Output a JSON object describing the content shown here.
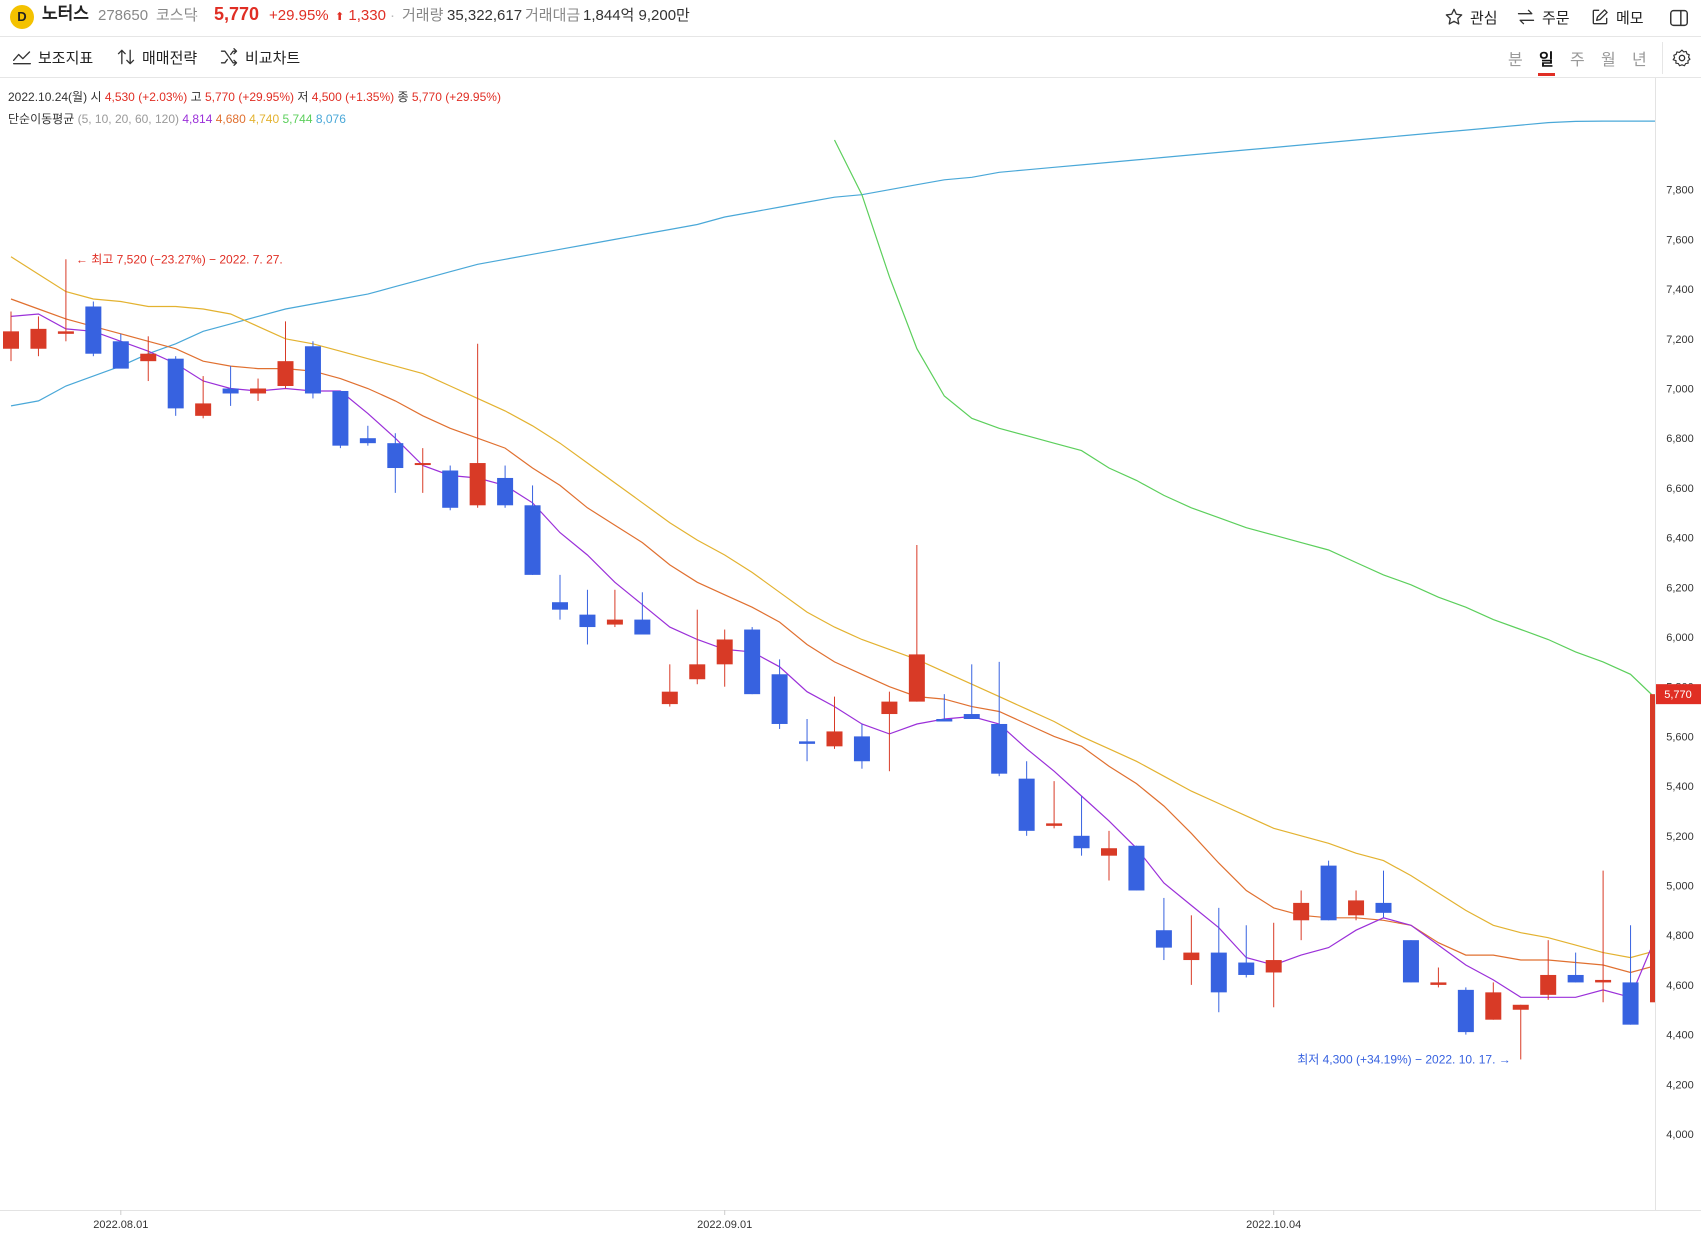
{
  "header": {
    "logo_text": "D",
    "name": "노터스",
    "code": "278650",
    "market": "코스닥",
    "price": "5,770",
    "change_rate": "+29.95%",
    "change_arrow": "⬆",
    "change": "1,330",
    "volume_label": "거래량",
    "volume": "35,322,617",
    "amount_label": "거래대금",
    "amount": "1,844억 9,200만",
    "buttons": {
      "watch": "관심",
      "order": "주문",
      "memo": "메모"
    }
  },
  "toolbar": {
    "indicators": "보조지표",
    "strategy": "매매전략",
    "compare": "비교차트",
    "periods": [
      "분",
      "일",
      "주",
      "월",
      "년"
    ],
    "active_period": "일"
  },
  "info": {
    "date": "2022.10.24(월)",
    "open_label": "시",
    "open": "4,530 (+2.03%)",
    "high_label": "고",
    "high": "5,770 (+29.95%)",
    "low_label": "저",
    "low": "4,500 (+1.35%)",
    "close_label": "종",
    "close": "5,770 (+29.95%)",
    "ma_label": "단순이동평균",
    "ma_params": "(5, 10, 20, 60, 120)",
    "ma_values": [
      "4,814",
      "4,680",
      "4,740",
      "5,744",
      "8,076"
    ]
  },
  "colors": {
    "up": "#d83a26",
    "down": "#3762e0",
    "ma5": "#9b30d9",
    "ma10": "#e07030",
    "ma20": "#e3b230",
    "ma60": "#5ccf5c",
    "ma120": "#4aa8d8"
  },
  "chart_data": {
    "type": "candlestick",
    "ylim": [
      3850,
      7950
    ],
    "yticks": [
      "4,000",
      "4,200",
      "4,400",
      "4,600",
      "4,800",
      "5,000",
      "5,200",
      "5,400",
      "5,600",
      "5,800",
      "6,000",
      "6,200",
      "6,400",
      "6,600",
      "6,800",
      "7,000",
      "7,200",
      "7,400",
      "7,600",
      "7,800"
    ],
    "xtick_labels": [
      {
        "index": 4,
        "label": "2022.08.01"
      },
      {
        "index": 26,
        "label": "2022.09.01"
      },
      {
        "index": 46,
        "label": "2022.10.04"
      }
    ],
    "candles": [
      {
        "o": 7160,
        "h": 7310,
        "l": 7110,
        "c": 7230
      },
      {
        "o": 7160,
        "h": 7290,
        "l": 7130,
        "c": 7240
      },
      {
        "o": 7220,
        "h": 7520,
        "l": 7190,
        "c": 7230
      },
      {
        "o": 7330,
        "h": 7350,
        "l": 7130,
        "c": 7140
      },
      {
        "o": 7190,
        "h": 7220,
        "l": 7090,
        "c": 7080
      },
      {
        "o": 7110,
        "h": 7210,
        "l": 7030,
        "c": 7140
      },
      {
        "o": 7120,
        "h": 7130,
        "l": 6890,
        "c": 6920
      },
      {
        "o": 6890,
        "h": 7050,
        "l": 6880,
        "c": 6940
      },
      {
        "o": 7000,
        "h": 7090,
        "l": 6930,
        "c": 6980
      },
      {
        "o": 6980,
        "h": 7040,
        "l": 6950,
        "c": 7000
      },
      {
        "o": 7010,
        "h": 7270,
        "l": 7000,
        "c": 7110
      },
      {
        "o": 7170,
        "h": 7190,
        "l": 6960,
        "c": 6980
      },
      {
        "o": 6990,
        "h": 6990,
        "l": 6760,
        "c": 6770
      },
      {
        "o": 6800,
        "h": 6850,
        "l": 6770,
        "c": 6780
      },
      {
        "o": 6780,
        "h": 6820,
        "l": 6580,
        "c": 6680
      },
      {
        "o": 6700,
        "h": 6760,
        "l": 6580,
        "c": 6700
      },
      {
        "o": 6670,
        "h": 6690,
        "l": 6510,
        "c": 6520
      },
      {
        "o": 6530,
        "h": 7180,
        "l": 6520,
        "c": 6700
      },
      {
        "o": 6640,
        "h": 6690,
        "l": 6520,
        "c": 6530
      },
      {
        "o": 6530,
        "h": 6610,
        "l": 6250,
        "c": 6250
      },
      {
        "o": 6140,
        "h": 6250,
        "l": 6070,
        "c": 6110
      },
      {
        "o": 6090,
        "h": 6190,
        "l": 5970,
        "c": 6040
      },
      {
        "o": 6050,
        "h": 6190,
        "l": 6040,
        "c": 6070
      },
      {
        "o": 6070,
        "h": 6180,
        "l": 6010,
        "c": 6010
      },
      {
        "o": 5730,
        "h": 5890,
        "l": 5720,
        "c": 5780
      },
      {
        "o": 5830,
        "h": 6110,
        "l": 5810,
        "c": 5890
      },
      {
        "o": 5890,
        "h": 6030,
        "l": 5800,
        "c": 5990
      },
      {
        "o": 6030,
        "h": 6040,
        "l": 5770,
        "c": 5770
      },
      {
        "o": 5850,
        "h": 5910,
        "l": 5630,
        "c": 5650
      },
      {
        "o": 5580,
        "h": 5670,
        "l": 5500,
        "c": 5570
      },
      {
        "o": 5560,
        "h": 5760,
        "l": 5550,
        "c": 5620
      },
      {
        "o": 5600,
        "h": 5650,
        "l": 5470,
        "c": 5500
      },
      {
        "o": 5690,
        "h": 5780,
        "l": 5460,
        "c": 5740
      },
      {
        "o": 5740,
        "h": 6370,
        "l": 5740,
        "c": 5930
      },
      {
        "o": 5670,
        "h": 5770,
        "l": 5660,
        "c": 5660
      },
      {
        "o": 5690,
        "h": 5890,
        "l": 5670,
        "c": 5670
      },
      {
        "o": 5650,
        "h": 5900,
        "l": 5440,
        "c": 5450
      },
      {
        "o": 5430,
        "h": 5500,
        "l": 5200,
        "c": 5220
      },
      {
        "o": 5240,
        "h": 5420,
        "l": 5230,
        "c": 5250
      },
      {
        "o": 5200,
        "h": 5360,
        "l": 5120,
        "c": 5150
      },
      {
        "o": 5120,
        "h": 5220,
        "l": 5020,
        "c": 5150
      },
      {
        "o": 5160,
        "h": 5160,
        "l": 4980,
        "c": 4980
      },
      {
        "o": 4820,
        "h": 4950,
        "l": 4700,
        "c": 4750
      },
      {
        "o": 4700,
        "h": 4880,
        "l": 4600,
        "c": 4730
      },
      {
        "o": 4730,
        "h": 4910,
        "l": 4490,
        "c": 4570
      },
      {
        "o": 4690,
        "h": 4840,
        "l": 4630,
        "c": 4640
      },
      {
        "o": 4650,
        "h": 4850,
        "l": 4510,
        "c": 4700
      },
      {
        "o": 4860,
        "h": 4980,
        "l": 4780,
        "c": 4930
      },
      {
        "o": 5080,
        "h": 5100,
        "l": 4860,
        "c": 4860
      },
      {
        "o": 4880,
        "h": 4980,
        "l": 4860,
        "c": 4940
      },
      {
        "o": 4930,
        "h": 5060,
        "l": 4870,
        "c": 4890
      },
      {
        "o": 4780,
        "h": 4780,
        "l": 4610,
        "c": 4610
      },
      {
        "o": 4600,
        "h": 4670,
        "l": 4590,
        "c": 4610
      },
      {
        "o": 4580,
        "h": 4590,
        "l": 4400,
        "c": 4410
      },
      {
        "o": 4460,
        "h": 4610,
        "l": 4460,
        "c": 4570
      },
      {
        "o": 4500,
        "h": 4520,
        "l": 4300,
        "c": 4520
      },
      {
        "o": 4560,
        "h": 4780,
        "l": 4540,
        "c": 4640
      },
      {
        "o": 4640,
        "h": 4730,
        "l": 4610,
        "c": 4610
      },
      {
        "o": 4610,
        "h": 5060,
        "l": 4530,
        "c": 4620
      },
      {
        "o": 4610,
        "h": 4840,
        "l": 4440,
        "c": 4440
      },
      {
        "o": 4530,
        "h": 5770,
        "l": 4500,
        "c": 5770
      }
    ],
    "ma5": [
      7290,
      7300,
      7240,
      7230,
      7190,
      7150,
      7100,
      7030,
      7000,
      6990,
      7000,
      6990,
      6990,
      6900,
      6800,
      6690,
      6650,
      6640,
      6610,
      6540,
      6420,
      6330,
      6220,
      6130,
      6040,
      5990,
      5950,
      5940,
      5880,
      5780,
      5720,
      5650,
      5610,
      5650,
      5670,
      5680,
      5650,
      5550,
      5460,
      5360,
      5260,
      5150,
      5010,
      4920,
      4830,
      4710,
      4680,
      4720,
      4750,
      4820,
      4870,
      4840,
      4760,
      4680,
      4620,
      4550,
      4550,
      4550,
      4580,
      4550,
      4814
    ],
    "ma10": [
      7360,
      7320,
      7280,
      7250,
      7220,
      7190,
      7160,
      7110,
      7090,
      7080,
      7080,
      7070,
      7040,
      7000,
      6950,
      6890,
      6840,
      6800,
      6760,
      6680,
      6610,
      6520,
      6450,
      6380,
      6290,
      6220,
      6170,
      6120,
      6060,
      5970,
      5900,
      5850,
      5800,
      5760,
      5750,
      5720,
      5700,
      5650,
      5600,
      5560,
      5480,
      5410,
      5320,
      5210,
      5090,
      4980,
      4910,
      4880,
      4870,
      4870,
      4860,
      4840,
      4770,
      4720,
      4720,
      4700,
      4700,
      4690,
      4680,
      4650,
      4680
    ],
    "ma20": [
      7530,
      7460,
      7390,
      7360,
      7350,
      7330,
      7330,
      7320,
      7300,
      7250,
      7200,
      7180,
      7150,
      7120,
      7090,
      7060,
      7010,
      6960,
      6910,
      6850,
      6780,
      6700,
      6620,
      6540,
      6460,
      6390,
      6330,
      6260,
      6180,
      6100,
      6040,
      5990,
      5950,
      5910,
      5860,
      5810,
      5760,
      5710,
      5660,
      5600,
      5550,
      5500,
      5440,
      5380,
      5330,
      5280,
      5230,
      5200,
      5170,
      5130,
      5100,
      5040,
      4970,
      4900,
      4840,
      4810,
      4790,
      4760,
      4730,
      4710,
      4740
    ],
    "ma60": [
      null,
      null,
      null,
      null,
      null,
      null,
      null,
      null,
      null,
      null,
      null,
      null,
      null,
      null,
      null,
      null,
      null,
      null,
      null,
      null,
      null,
      null,
      null,
      null,
      null,
      null,
      null,
      null,
      null,
      null,
      8000,
      7780,
      7450,
      7160,
      6970,
      6880,
      6840,
      6810,
      6780,
      6750,
      6680,
      6630,
      6570,
      6520,
      6480,
      6440,
      6410,
      6380,
      6350,
      6300,
      6250,
      6210,
      6160,
      6120,
      6070,
      6030,
      5990,
      5940,
      5900,
      5850,
      5744
    ],
    "ma120": [
      6930,
      6950,
      7010,
      7050,
      7090,
      7140,
      7180,
      7230,
      7260,
      7290,
      7320,
      7340,
      7360,
      7380,
      7410,
      7440,
      7470,
      7500,
      7520,
      7540,
      7560,
      7580,
      7600,
      7620,
      7640,
      7660,
      7690,
      7710,
      7730,
      7750,
      7770,
      7780,
      7800,
      7820,
      7840,
      7850,
      7870,
      7880,
      7890,
      7900,
      7910,
      7920,
      7930,
      7940,
      7950,
      7960,
      7970,
      7980,
      7990,
      8000,
      8010,
      8020,
      8030,
      8040,
      8050,
      8060,
      8070,
      8075,
      8076,
      8076,
      8076
    ],
    "annotations": {
      "high": "← 최고 7,520 (−23.27%) − 2022. 7. 27.",
      "low": "최저 4,300 (+34.19%) − 2022. 10. 17. →",
      "last_price": "5,770"
    }
  }
}
